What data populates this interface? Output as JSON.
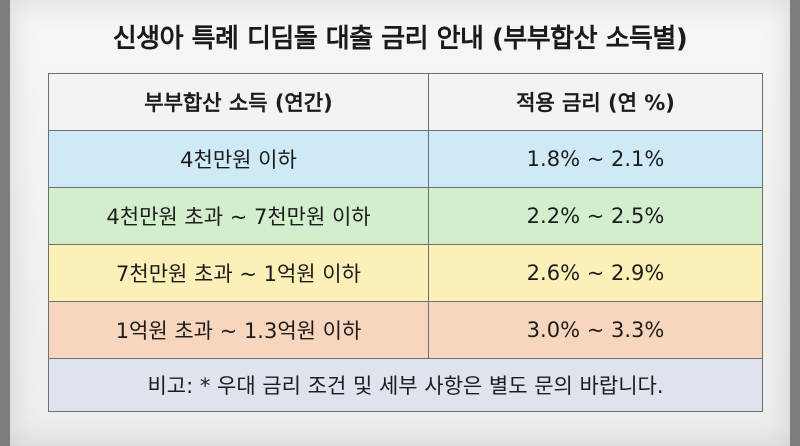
{
  "title": "신생아 특례 디딤돌 대출 금리 안내 (부부합산 소득별)",
  "table": {
    "headers": [
      "부부합산 소득 (연간)",
      "적용 금리 (연 %)"
    ],
    "rows": [
      {
        "income": "4천만원 이하",
        "rate": "1.8% ~ 2.1%",
        "color": "#cfe9f6"
      },
      {
        "income": "4천만원 초과 ~ 7천만원 이하",
        "rate": "2.2% ~ 2.5%",
        "color": "#d3eecd"
      },
      {
        "income": "7천만원 초과 ~ 1억원 이하",
        "rate": "2.6% ~ 2.9%",
        "color": "#fbf0b8"
      },
      {
        "income": "1억원 초과 ~ 1.3억원 이하",
        "rate": "3.0% ~ 3.3%",
        "color": "#f8d6bd"
      }
    ],
    "note": "비고: * 우대 금리 조건 및 세부 사항은 별도 문의 바랍니다."
  }
}
